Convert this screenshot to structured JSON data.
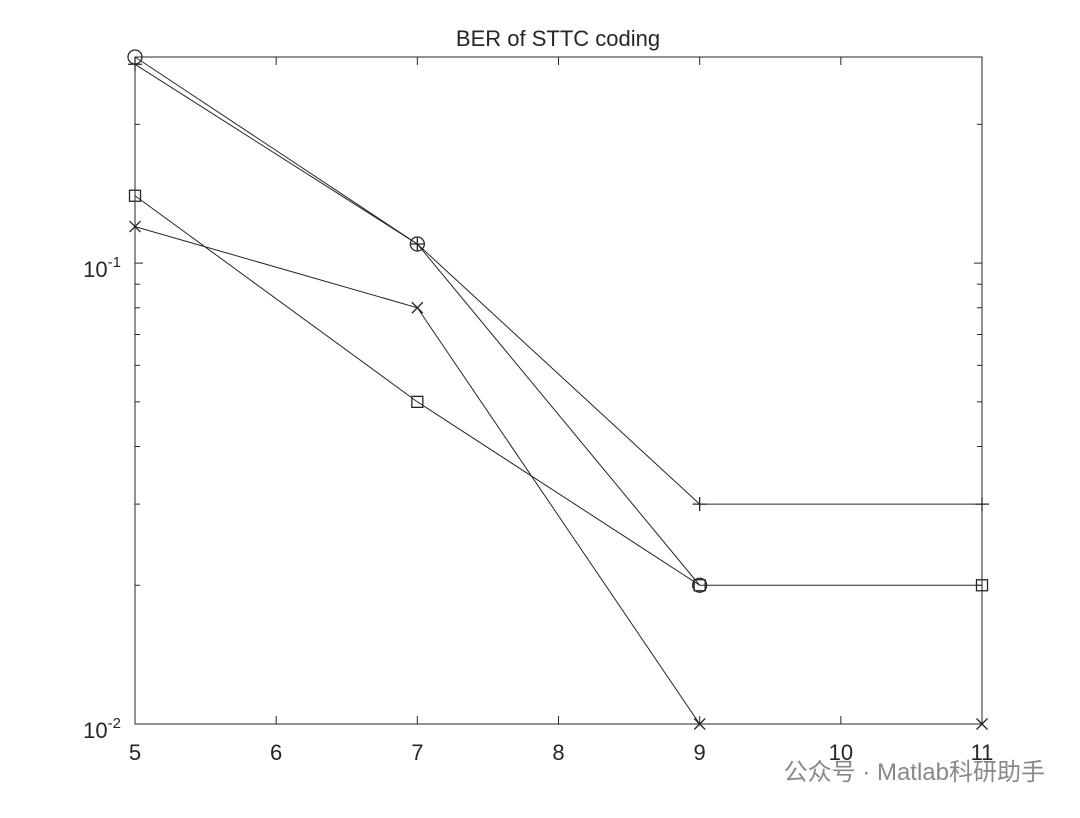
{
  "chart_data": {
    "type": "line",
    "title": "BER of STTC coding",
    "x": [
      5,
      7,
      9,
      11
    ],
    "series": [
      {
        "marker": "o",
        "color": "#262626",
        "values": [
          0.28,
          0.11,
          0.02,
          null
        ]
      },
      {
        "marker": "+",
        "color": "#262626",
        "values": [
          0.27,
          0.11,
          0.03,
          0.03
        ]
      },
      {
        "marker": "square",
        "color": "#262626",
        "values": [
          0.14,
          0.05,
          0.02,
          0.02
        ]
      },
      {
        "marker": "x",
        "color": "#262626",
        "values": [
          0.12,
          0.08,
          0.01,
          0.01
        ]
      }
    ],
    "xlim": [
      5,
      11
    ],
    "xticks": [
      5,
      6,
      7,
      8,
      9,
      10,
      11
    ],
    "ylim": [
      0.01,
      0.28
    ],
    "log_y": true,
    "yticks": [
      {
        "value": 0.01,
        "label": "10",
        "exponent": "-2"
      },
      {
        "value": 0.1,
        "label": "10",
        "exponent": "-1"
      }
    ],
    "minor_yticks": [
      0.02,
      0.03,
      0.04,
      0.05,
      0.06,
      0.07,
      0.08,
      0.09,
      0.2
    ],
    "grid": false,
    "watermark": "公众号 · Matlab科研助手"
  }
}
